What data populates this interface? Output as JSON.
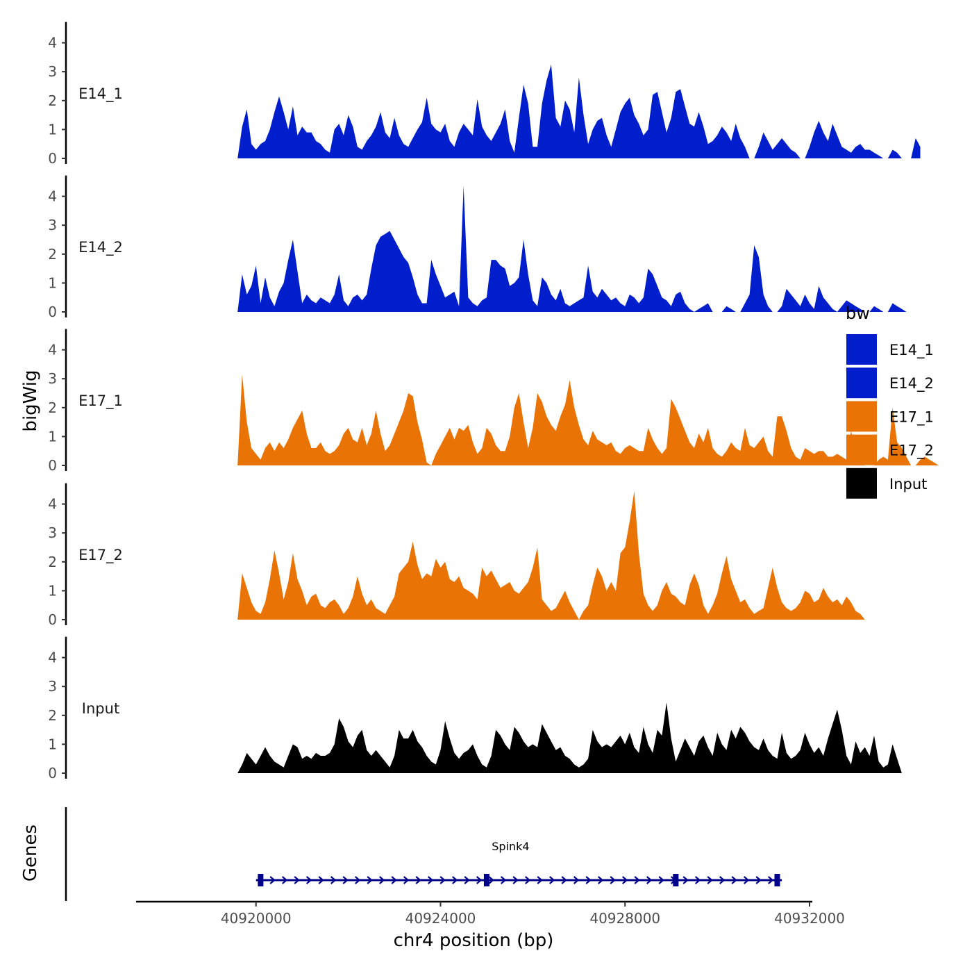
{
  "chart_data": {
    "type": "area",
    "ylabel": "bigWig",
    "xlabel": "chr4 position (bp)",
    "genes_label": "Genes",
    "xlim": [
      40917400,
      40932000
    ],
    "ylim": [
      0,
      4.6
    ],
    "x_ticks": [
      40920000,
      40924000,
      40928000,
      40932000
    ],
    "x_tick_labels": [
      "40920000",
      "40924000",
      "40928000",
      "40932000"
    ],
    "y_ticks": [
      0,
      1,
      2,
      3,
      4
    ],
    "y_tick_labels": [
      "0",
      "1",
      "2",
      "3",
      "4"
    ],
    "legend": {
      "title": "bw",
      "position": "right",
      "entries": [
        {
          "label": "E14_1",
          "color": "#001ECC"
        },
        {
          "label": "E14_2",
          "color": "#001ECC"
        },
        {
          "label": "E17_1",
          "color": "#E97305"
        },
        {
          "label": "E17_2",
          "color": "#E97305"
        },
        {
          "label": "Input",
          "color": "#000000"
        }
      ]
    },
    "series": [
      {
        "name": "E14_1",
        "color": "#001ECC",
        "x_start": 40919600,
        "x_step": 100,
        "values": [
          0,
          1.1,
          1.7,
          0.5,
          0.3,
          0.5,
          0.6,
          1.0,
          1.6,
          2.15,
          1.6,
          1.0,
          1.8,
          0.8,
          1.1,
          0.9,
          0.9,
          0.6,
          0.5,
          0.3,
          0.2,
          1.0,
          1.2,
          0.8,
          1.5,
          1.1,
          0.4,
          0.3,
          0.6,
          0.8,
          1.1,
          1.6,
          0.9,
          0.7,
          1.4,
          0.8,
          0.5,
          0.4,
          0.7,
          1.0,
          1.25,
          2.1,
          1.2,
          1.0,
          0.9,
          1.2,
          0.6,
          0.4,
          0.9,
          1.2,
          1.0,
          0.8,
          2.05,
          1.1,
          0.8,
          0.6,
          0.9,
          1.2,
          1.7,
          0.6,
          0.2,
          1.4,
          2.55,
          1.9,
          0.4,
          0.4,
          1.9,
          2.7,
          3.25,
          1.4,
          1.1,
          2.0,
          1.7,
          0.9,
          2.8,
          1.5,
          0.5,
          1.0,
          1.3,
          1.4,
          0.8,
          0.4,
          1.0,
          1.6,
          1.9,
          2.1,
          1.5,
          1.2,
          0.8,
          1.0,
          2.2,
          2.3,
          1.6,
          0.9,
          1.4,
          2.3,
          2.4,
          1.8,
          1.2,
          1.1,
          1.6,
          1.1,
          0.5,
          0.6,
          0.8,
          1.1,
          0.9,
          0.6,
          1.2,
          0.7,
          0.4,
          0.0,
          0.0,
          0.4,
          0.9,
          0.6,
          0.3,
          0.5,
          0.7,
          0.5,
          0.3,
          0.2,
          0.0,
          0.0,
          0.4,
          0.9,
          1.3,
          0.9,
          0.6,
          1.2,
          0.8,
          0.4,
          0.3,
          0.2,
          0.4,
          0.5,
          0.3,
          0.3,
          0.2,
          0.1,
          0.0,
          0.0,
          0.3,
          0.2,
          0.0,
          0.0,
          0.0,
          0.7,
          0.4
        ]
      },
      {
        "name": "E14_2",
        "color": "#001ECC",
        "x_start": 40919600,
        "x_step": 100,
        "values": [
          0,
          1.3,
          0.6,
          0.9,
          1.6,
          0.3,
          1.2,
          0.5,
          0.2,
          0.7,
          1.0,
          1.8,
          2.5,
          1.4,
          0.3,
          0.6,
          0.4,
          0.3,
          0.5,
          0.4,
          0.3,
          0.6,
          1.3,
          0.4,
          0.2,
          0.5,
          0.6,
          0.4,
          0.6,
          1.5,
          2.3,
          2.6,
          2.7,
          2.8,
          2.5,
          2.2,
          1.9,
          1.7,
          1.2,
          0.6,
          0.3,
          0.3,
          1.8,
          1.3,
          0.9,
          0.5,
          0.6,
          0.7,
          0.2,
          4.35,
          0.5,
          0.3,
          0.2,
          0.4,
          0.5,
          1.8,
          1.8,
          1.6,
          1.5,
          0.9,
          1.0,
          1.2,
          2.5,
          1.3,
          0.4,
          0.2,
          1.2,
          1.0,
          0.6,
          0.4,
          0.8,
          0.3,
          0.2,
          0.3,
          0.4,
          0.5,
          1.6,
          0.7,
          0.5,
          0.8,
          0.6,
          0.4,
          0.5,
          0.3,
          0.2,
          0.6,
          0.5,
          0.3,
          0.5,
          1.5,
          1.3,
          0.9,
          0.5,
          0.4,
          0.2,
          0.6,
          0.7,
          0.3,
          0.1,
          0.0,
          0.1,
          0.2,
          0.3,
          0.0,
          0.0,
          0.0,
          0.2,
          0.1,
          0.0,
          0.0,
          0.3,
          0.6,
          2.3,
          1.9,
          0.6,
          0.2,
          0.0,
          0.0,
          0.2,
          0.8,
          0.6,
          0.4,
          0.2,
          0.6,
          0.3,
          0.1,
          0.9,
          0.5,
          0.3,
          0.1,
          0.0,
          0.2,
          0.4,
          0.3,
          0.2,
          0.1,
          0.0,
          0.0,
          0.2,
          0.1,
          0.0,
          0.0,
          0.3,
          0.2,
          0.1,
          0.0
        ]
      },
      {
        "name": "E17_1",
        "color": "#E97305",
        "x_start": 40919600,
        "x_step": 100,
        "values": [
          0,
          3.15,
          1.5,
          0.6,
          0.4,
          0.2,
          0.6,
          0.8,
          0.5,
          0.8,
          0.6,
          0.9,
          1.3,
          1.6,
          1.9,
          1.1,
          0.6,
          0.6,
          0.8,
          0.5,
          0.4,
          0.5,
          0.7,
          1.1,
          1.3,
          0.9,
          0.8,
          1.3,
          0.7,
          1.1,
          1.9,
          1.1,
          0.5,
          0.7,
          1.1,
          1.5,
          1.9,
          2.5,
          2.4,
          1.5,
          0.9,
          0.1,
          0.0,
          0.4,
          0.7,
          1.0,
          1.3,
          0.9,
          1.3,
          1.2,
          1.4,
          0.8,
          0.4,
          0.6,
          1.3,
          1.1,
          0.7,
          0.5,
          0.5,
          1.0,
          2.0,
          2.5,
          1.5,
          0.6,
          1.3,
          2.5,
          2.2,
          1.7,
          1.4,
          1.2,
          1.7,
          2.1,
          2.95,
          2.0,
          1.4,
          0.9,
          0.7,
          1.2,
          0.9,
          0.8,
          0.7,
          0.8,
          0.5,
          0.4,
          0.6,
          0.7,
          0.6,
          0.5,
          0.5,
          1.3,
          0.9,
          0.6,
          0.4,
          0.6,
          2.3,
          2.0,
          1.6,
          1.2,
          0.8,
          0.6,
          1.1,
          0.8,
          1.3,
          0.6,
          0.4,
          0.3,
          0.5,
          0.8,
          0.6,
          0.5,
          1.3,
          0.7,
          0.6,
          0.8,
          1.0,
          0.5,
          0.3,
          1.7,
          1.7,
          1.2,
          0.6,
          0.3,
          0.2,
          0.6,
          0.5,
          0.4,
          0.5,
          0.5,
          0.3,
          0.3,
          0.4,
          0.3,
          0.2,
          1.2,
          0.4,
          0.2,
          0.0,
          0.0,
          0.0,
          0.2,
          0.3,
          0.2,
          2.0,
          0.8,
          0.6,
          0.3,
          0.0,
          0.0,
          0.2,
          0.3,
          0.2,
          0.1,
          0.0
        ]
      },
      {
        "name": "E17_2",
        "color": "#E97305",
        "x_start": 40919600,
        "x_step": 100,
        "values": [
          0,
          1.6,
          1.1,
          0.6,
          0.3,
          0.2,
          0.6,
          1.4,
          2.4,
          1.6,
          0.7,
          1.3,
          2.3,
          1.4,
          1.0,
          0.5,
          0.8,
          0.9,
          0.5,
          0.4,
          0.6,
          0.7,
          0.5,
          0.2,
          0.4,
          0.8,
          1.5,
          0.9,
          0.5,
          0.7,
          0.4,
          0.3,
          0.2,
          0.5,
          0.8,
          1.6,
          1.8,
          2.0,
          2.7,
          1.9,
          1.4,
          1.6,
          1.5,
          2.1,
          1.8,
          2.0,
          1.4,
          1.3,
          1.5,
          1.1,
          1.0,
          0.9,
          0.7,
          1.8,
          1.5,
          1.7,
          1.4,
          1.1,
          1.2,
          1.3,
          1.0,
          0.9,
          1.1,
          1.3,
          1.8,
          2.5,
          0.7,
          0.5,
          0.3,
          0.4,
          0.7,
          1.0,
          0.6,
          0.3,
          0.0,
          0.3,
          0.5,
          1.2,
          1.8,
          1.5,
          1.0,
          1.3,
          1.0,
          2.3,
          2.5,
          3.4,
          4.45,
          2.3,
          0.9,
          0.5,
          0.3,
          0.5,
          1.0,
          1.3,
          0.9,
          0.8,
          0.6,
          0.5,
          1.2,
          1.6,
          1.2,
          0.5,
          0.2,
          0.5,
          0.9,
          1.6,
          2.2,
          1.4,
          1.0,
          0.6,
          0.7,
          0.4,
          0.2,
          0.3,
          0.4,
          1.1,
          1.8,
          1.1,
          0.6,
          0.4,
          0.3,
          0.4,
          0.6,
          1.0,
          0.9,
          0.6,
          0.7,
          1.1,
          0.8,
          0.6,
          0.7,
          0.5,
          0.8,
          0.6,
          0.3,
          0.2,
          0.0
        ]
      },
      {
        "name": "Input",
        "color": "#000000",
        "x_start": 40919600,
        "x_step": 100,
        "values": [
          0,
          0.3,
          0.7,
          0.5,
          0.3,
          0.6,
          0.9,
          0.6,
          0.4,
          0.3,
          0.2,
          0.6,
          1.0,
          0.9,
          0.5,
          0.6,
          0.5,
          0.7,
          0.6,
          0.6,
          0.7,
          1.0,
          1.9,
          1.6,
          1.1,
          0.9,
          1.3,
          1.5,
          0.8,
          0.6,
          0.8,
          0.6,
          0.4,
          0.2,
          0.6,
          1.5,
          1.2,
          1.2,
          1.5,
          1.1,
          0.9,
          0.6,
          0.4,
          0.3,
          0.8,
          1.8,
          1.2,
          0.7,
          0.5,
          0.7,
          0.8,
          1.0,
          0.6,
          0.3,
          0.2,
          0.6,
          1.5,
          1.3,
          1.0,
          0.8,
          1.6,
          1.4,
          1.1,
          0.9,
          1.0,
          0.9,
          1.7,
          1.4,
          1.1,
          0.8,
          0.9,
          0.6,
          0.5,
          0.3,
          0.2,
          0.3,
          0.5,
          1.5,
          1.1,
          0.9,
          1.0,
          0.9,
          1.1,
          1.3,
          1.0,
          1.4,
          0.9,
          0.7,
          1.6,
          1.0,
          0.7,
          1.5,
          1.3,
          2.45,
          1.2,
          0.4,
          0.8,
          1.2,
          0.9,
          0.6,
          1.1,
          1.3,
          0.9,
          0.6,
          1.4,
          1.0,
          0.8,
          1.5,
          1.2,
          1.6,
          1.4,
          1.1,
          0.9,
          0.8,
          1.2,
          0.8,
          0.6,
          0.5,
          1.4,
          0.7,
          0.5,
          0.6,
          0.8,
          1.4,
          1.0,
          0.7,
          0.9,
          0.6,
          1.2,
          1.7,
          2.2,
          1.5,
          0.6,
          0.3,
          1.1,
          0.7,
          0.9,
          0.6,
          1.3,
          0.4,
          0.2,
          0.3,
          1.0,
          0.5,
          0.0
        ]
      }
    ],
    "gene": {
      "name": "Spink4",
      "color": "#00008B",
      "start": 40920000,
      "end": 40931400,
      "strand": "+",
      "exons": [
        40920100,
        40925000,
        40929100,
        40931300
      ]
    }
  }
}
